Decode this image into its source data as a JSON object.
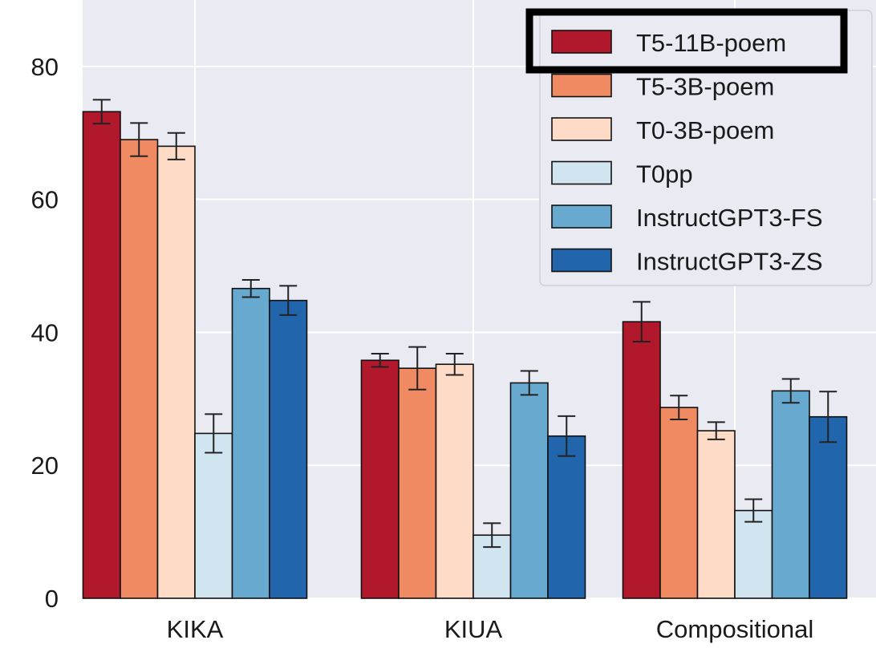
{
  "chart_data": {
    "type": "bar",
    "title": "",
    "xlabel": "",
    "ylabel": "",
    "categories": [
      "KIKA",
      "KIUA",
      "Compositional"
    ],
    "yticks": [
      "0",
      "20",
      "40",
      "60",
      "80"
    ],
    "ylim": [
      0,
      90
    ],
    "grid": true,
    "legend_position": "top-right",
    "highlighted_legend_entry": "T5-11B-poem",
    "series": [
      {
        "name": "T5-11B-poem",
        "color": "#b2182b",
        "values": [
          73.2,
          35.8,
          41.6
        ],
        "errors": [
          1.8,
          1.0,
          3.0
        ]
      },
      {
        "name": "T5-3B-poem",
        "color": "#ef8a62",
        "values": [
          69.0,
          34.6,
          28.7
        ],
        "errors": [
          2.5,
          3.2,
          1.8
        ]
      },
      {
        "name": "T0-3B-poem",
        "color": "#fddbc7",
        "values": [
          68.0,
          35.2,
          25.2
        ],
        "errors": [
          2.0,
          1.6,
          1.3
        ]
      },
      {
        "name": "T0pp",
        "color": "#d1e5f0",
        "values": [
          24.8,
          9.5,
          13.2
        ],
        "errors": [
          2.9,
          1.8,
          1.7
        ]
      },
      {
        "name": "InstructGPT3-FS",
        "color": "#67a9cf",
        "values": [
          46.6,
          32.4,
          31.2
        ],
        "errors": [
          1.3,
          1.8,
          1.8
        ]
      },
      {
        "name": "InstructGPT3-ZS",
        "color": "#2166ac",
        "values": [
          44.8,
          24.4,
          27.3
        ],
        "errors": [
          2.2,
          3.0,
          3.8
        ]
      }
    ]
  }
}
